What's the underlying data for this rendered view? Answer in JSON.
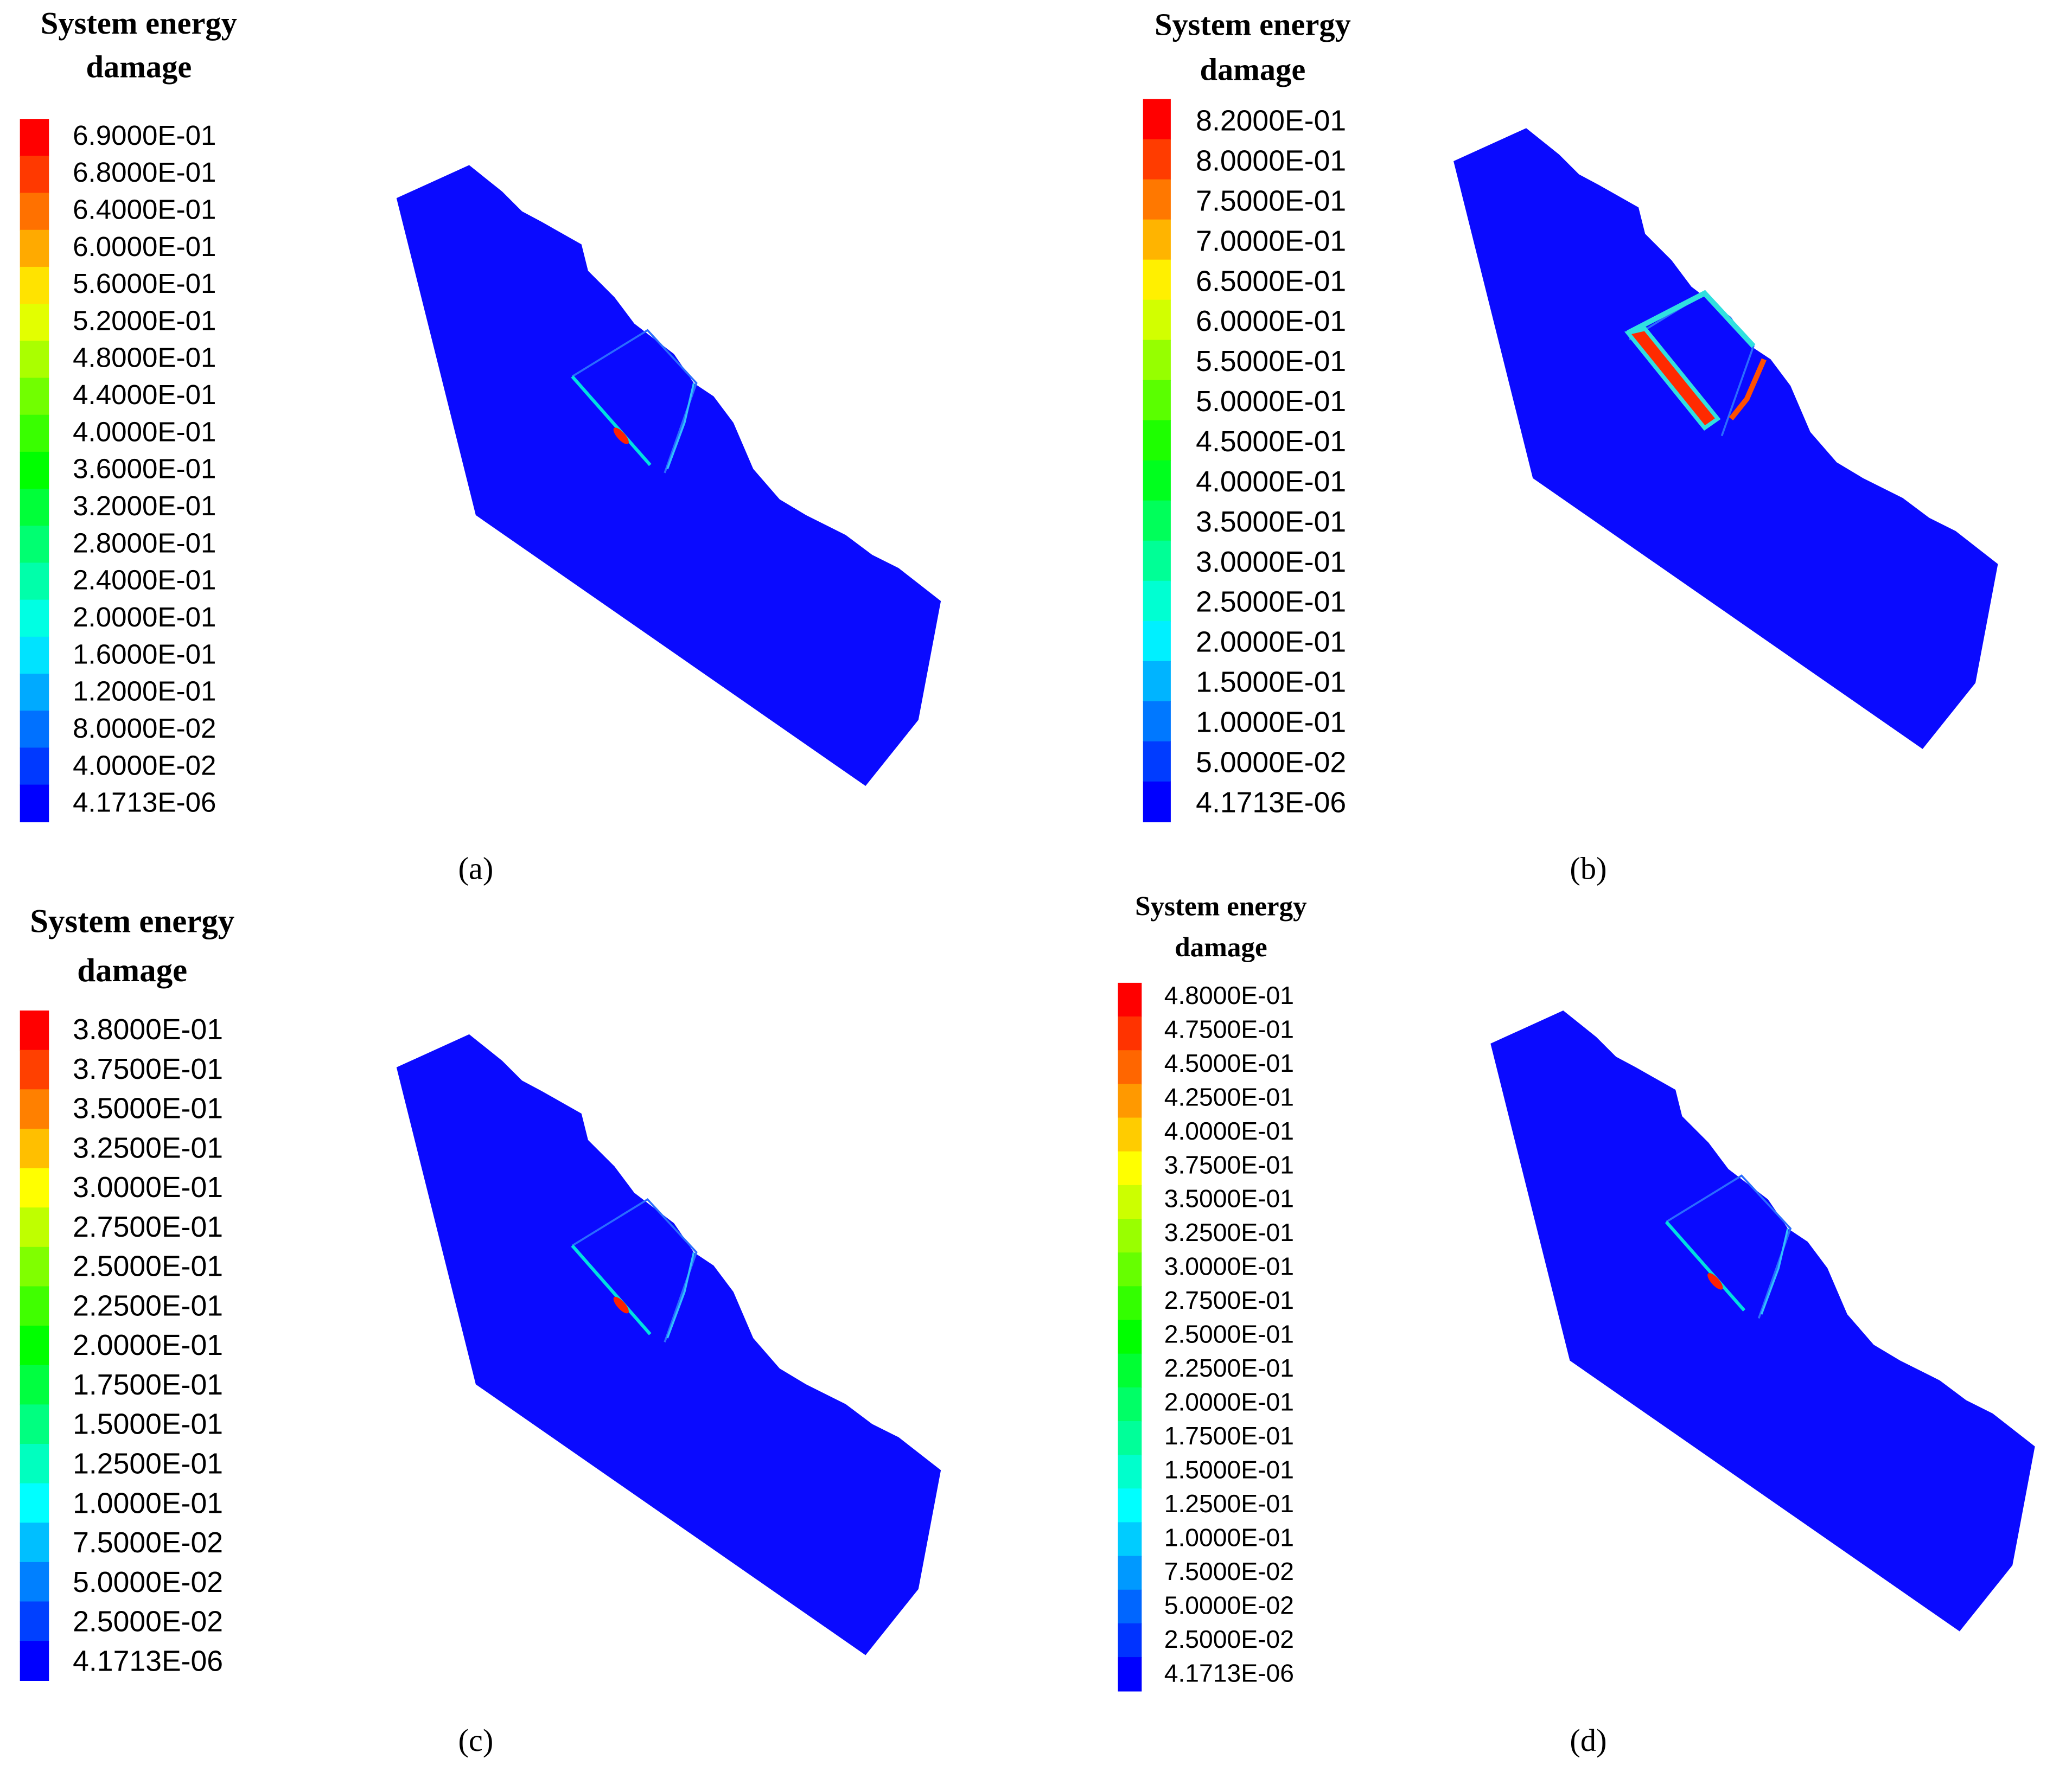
{
  "panels": [
    {
      "title_lines": [
        "System energy",
        "damage"
      ],
      "caption": "(a)",
      "legend_labels": [
        "6.9000E-01",
        "6.8000E-01",
        "6.4000E-01",
        "6.0000E-01",
        "5.6000E-01",
        "5.2000E-01",
        "4.8000E-01",
        "4.4000E-01",
        "4.0000E-01",
        "3.6000E-01",
        "3.2000E-01",
        "2.8000E-01",
        "2.4000E-01",
        "2.0000E-01",
        "1.6000E-01",
        "1.2000E-01",
        "8.0000E-02",
        "4.0000E-02",
        "4.1713E-06"
      ]
    },
    {
      "title_lines": [
        "System energy",
        "damage"
      ],
      "caption": "(b)",
      "legend_labels": [
        "8.2000E-01",
        "8.0000E-01",
        "7.5000E-01",
        "7.0000E-01",
        "6.5000E-01",
        "6.0000E-01",
        "5.5000E-01",
        "5.0000E-01",
        "4.5000E-01",
        "4.0000E-01",
        "3.5000E-01",
        "3.0000E-01",
        "2.5000E-01",
        "2.0000E-01",
        "1.5000E-01",
        "1.0000E-01",
        "5.0000E-02",
        "4.1713E-06"
      ]
    },
    {
      "title_lines": [
        "System energy",
        "damage"
      ],
      "caption": "(c)",
      "legend_labels": [
        "3.8000E-01",
        "3.7500E-01",
        "3.5000E-01",
        "3.2500E-01",
        "3.0000E-01",
        "2.7500E-01",
        "2.5000E-01",
        "2.2500E-01",
        "2.0000E-01",
        "1.7500E-01",
        "1.5000E-01",
        "1.2500E-01",
        "1.0000E-01",
        "7.5000E-02",
        "5.0000E-02",
        "2.5000E-02",
        "4.1713E-06"
      ]
    },
    {
      "title_lines": [
        "System energy",
        "damage"
      ],
      "caption": "(d)",
      "legend_labels": [
        "4.8000E-01",
        "4.7500E-01",
        "4.5000E-01",
        "4.2500E-01",
        "4.0000E-01",
        "3.7500E-01",
        "3.5000E-01",
        "3.2500E-01",
        "3.0000E-01",
        "2.7500E-01",
        "2.5000E-01",
        "2.2500E-01",
        "2.0000E-01",
        "1.7500E-01",
        "1.5000E-01",
        "1.2500E-01",
        "1.0000E-01",
        "7.5000E-02",
        "5.0000E-02",
        "2.5000E-02",
        "4.1713E-06"
      ]
    }
  ]
}
